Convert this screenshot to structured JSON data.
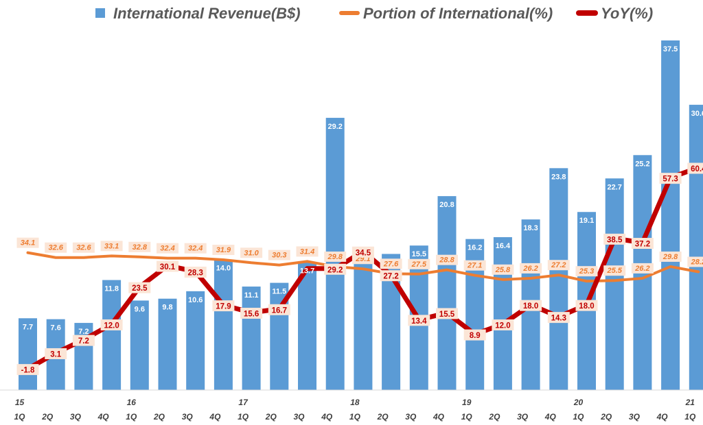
{
  "chart_data": {
    "type": "bar",
    "categories": [
      "15 1Q",
      "2Q",
      "3Q",
      "4Q",
      "16 1Q",
      "2Q",
      "3Q",
      "4Q",
      "17 1Q",
      "2Q",
      "3Q",
      "4Q",
      "18 1Q",
      "2Q",
      "3Q",
      "4Q",
      "19 1Q",
      "2Q",
      "3Q",
      "4Q",
      "20 1Q",
      "2Q",
      "3Q",
      "4Q",
      "21 1Q"
    ],
    "tick_labels": [
      {
        "top": "15",
        "bottom": "1Q"
      },
      {
        "top": "",
        "bottom": "2Q"
      },
      {
        "top": "",
        "bottom": "3Q"
      },
      {
        "top": "",
        "bottom": "4Q"
      },
      {
        "top": "16",
        "bottom": "1Q"
      },
      {
        "top": "",
        "bottom": "2Q"
      },
      {
        "top": "",
        "bottom": "3Q"
      },
      {
        "top": "",
        "bottom": "4Q"
      },
      {
        "top": "17",
        "bottom": "1Q"
      },
      {
        "top": "",
        "bottom": "2Q"
      },
      {
        "top": "",
        "bottom": "3Q"
      },
      {
        "top": "",
        "bottom": "4Q"
      },
      {
        "top": "18",
        "bottom": "1Q"
      },
      {
        "top": "",
        "bottom": "2Q"
      },
      {
        "top": "",
        "bottom": "3Q"
      },
      {
        "top": "",
        "bottom": "4Q"
      },
      {
        "top": "19",
        "bottom": "1Q"
      },
      {
        "top": "",
        "bottom": "2Q"
      },
      {
        "top": "",
        "bottom": "3Q"
      },
      {
        "top": "",
        "bottom": "4Q"
      },
      {
        "top": "20",
        "bottom": "1Q"
      },
      {
        "top": "",
        "bottom": "2Q"
      },
      {
        "top": "",
        "bottom": "3Q"
      },
      {
        "top": "",
        "bottom": "4Q"
      },
      {
        "top": "21",
        "bottom": "1Q"
      }
    ],
    "series": [
      {
        "name": "International Revenue(B$)",
        "type": "bar",
        "color": "#5b9bd5",
        "values": [
          7.7,
          7.6,
          7.2,
          11.8,
          9.6,
          9.8,
          10.6,
          14.0,
          11.1,
          11.5,
          13.7,
          29.2,
          14.9,
          14.6,
          15.5,
          20.8,
          16.2,
          16.4,
          18.3,
          23.8,
          19.1,
          22.7,
          25.2,
          37.5,
          30.6
        ]
      },
      {
        "name": "Portion of International(%)",
        "type": "line",
        "color": "#ed7d31",
        "values": [
          34.1,
          32.6,
          32.6,
          33.1,
          32.8,
          32.4,
          32.4,
          31.9,
          31.0,
          30.3,
          31.4,
          29.8,
          29.1,
          27.6,
          27.5,
          28.8,
          27.1,
          25.8,
          26.2,
          27.2,
          25.3,
          25.5,
          26.2,
          29.8,
          28.2
        ]
      },
      {
        "name": "YoY(%)",
        "type": "line",
        "color": "#c00000",
        "values": [
          -1.8,
          3.1,
          7.2,
          12.0,
          23.5,
          30.1,
          28.3,
          17.9,
          15.6,
          16.7,
          29.2,
          29.2,
          34.5,
          27.2,
          13.4,
          15.5,
          8.9,
          12.0,
          18.0,
          14.3,
          18.0,
          38.5,
          37.2,
          57.3,
          60.4
        ],
        "labels": [
          "-1.8",
          "3.1",
          "7.2",
          "12.0",
          "23.5",
          "30.1",
          "28.3",
          "17.9",
          "15.6",
          "16.7",
          "",
          "29.2",
          "34.5",
          "27.2",
          "13.4",
          "15.5",
          "8.9",
          "12.0",
          "18.0",
          "14.3",
          "18.0",
          "38.5",
          "37.2",
          "57.3",
          "60.4"
        ]
      }
    ],
    "legend_position": "top",
    "grid": false
  }
}
